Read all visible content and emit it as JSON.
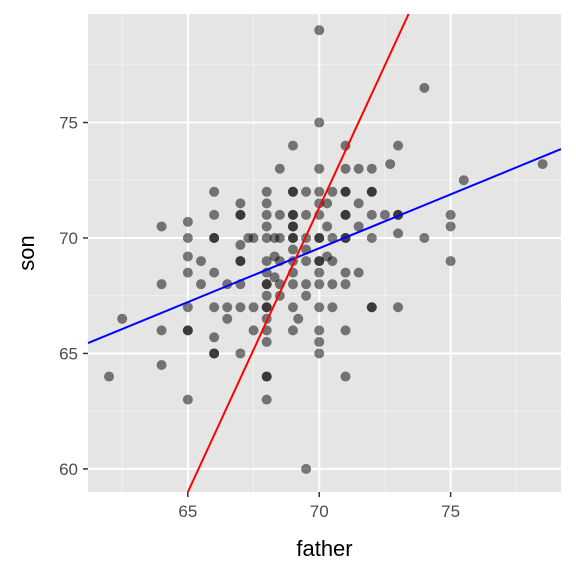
{
  "chart_data": {
    "type": "scatter",
    "xlabel": "father",
    "ylabel": "son",
    "xlim": [
      61.2,
      79.2
    ],
    "ylim": [
      59.0,
      79.7
    ],
    "x_ticks": [
      65,
      70,
      75
    ],
    "y_ticks": [
      60,
      65,
      70,
      75
    ],
    "x_minor": [
      62.5,
      67.5,
      72.5,
      77.5
    ],
    "y_minor": [
      62.5,
      67.5,
      72.5,
      77.5
    ],
    "grid": true,
    "legend": "none",
    "background_color": "#e5e5e5",
    "point_color": "#000000",
    "point_alpha": 0.5,
    "points": [
      [
        62,
        64
      ],
      [
        62.5,
        66.5
      ],
      [
        64,
        70.5
      ],
      [
        64,
        68
      ],
      [
        64,
        66
      ],
      [
        64,
        64.5
      ],
      [
        65,
        70.7
      ],
      [
        65,
        70
      ],
      [
        65,
        69.2
      ],
      [
        65,
        68.5
      ],
      [
        65,
        67
      ],
      [
        65,
        66
      ],
      [
        65,
        66
      ],
      [
        65,
        63
      ],
      [
        65.5,
        69
      ],
      [
        65.5,
        68
      ],
      [
        66,
        72
      ],
      [
        66,
        71
      ],
      [
        66,
        70
      ],
      [
        66,
        70
      ],
      [
        66,
        68.5
      ],
      [
        66,
        67
      ],
      [
        66,
        65.7
      ],
      [
        66,
        65
      ],
      [
        66,
        65
      ],
      [
        66.5,
        68
      ],
      [
        66.5,
        67
      ],
      [
        66.5,
        66.5
      ],
      [
        67,
        71.5
      ],
      [
        67,
        71
      ],
      [
        67,
        71
      ],
      [
        67,
        69.7
      ],
      [
        67,
        69
      ],
      [
        67,
        69
      ],
      [
        67,
        68
      ],
      [
        67,
        67
      ],
      [
        67,
        65
      ],
      [
        67.3,
        70
      ],
      [
        67.5,
        70
      ],
      [
        67.5,
        67
      ],
      [
        67.5,
        66
      ],
      [
        68,
        72
      ],
      [
        68,
        71.5
      ],
      [
        68,
        71
      ],
      [
        68,
        70.5
      ],
      [
        68,
        70
      ],
      [
        68,
        69
      ],
      [
        68,
        68.5
      ],
      [
        68,
        68
      ],
      [
        68,
        68
      ],
      [
        68,
        67.5
      ],
      [
        68,
        67
      ],
      [
        68,
        67
      ],
      [
        68,
        66.5
      ],
      [
        68,
        66
      ],
      [
        68,
        65.5
      ],
      [
        68,
        64
      ],
      [
        68,
        64
      ],
      [
        68,
        63
      ],
      [
        68.3,
        70
      ],
      [
        68.3,
        69.2
      ],
      [
        68.3,
        68.3
      ],
      [
        68.5,
        73
      ],
      [
        68.5,
        71
      ],
      [
        68.5,
        70
      ],
      [
        68.5,
        69
      ],
      [
        68.5,
        68
      ],
      [
        68.5,
        67.5
      ],
      [
        69,
        74
      ],
      [
        69,
        72
      ],
      [
        69,
        72
      ],
      [
        69,
        71
      ],
      [
        69,
        71
      ],
      [
        69,
        70.5
      ],
      [
        69,
        70.5
      ],
      [
        69,
        70
      ],
      [
        69,
        70
      ],
      [
        69,
        69.5
      ],
      [
        69,
        69
      ],
      [
        69,
        68.5
      ],
      [
        69,
        68
      ],
      [
        69,
        67
      ],
      [
        69,
        66
      ],
      [
        69.2,
        66.5
      ],
      [
        69.5,
        72
      ],
      [
        69.5,
        71
      ],
      [
        69.5,
        70
      ],
      [
        69.5,
        69.5
      ],
      [
        69.5,
        69
      ],
      [
        69.5,
        68
      ],
      [
        69.5,
        67.5
      ],
      [
        69.5,
        60
      ],
      [
        70,
        79
      ],
      [
        70,
        75
      ],
      [
        70,
        73
      ],
      [
        70,
        72
      ],
      [
        70,
        71.5
      ],
      [
        70,
        71
      ],
      [
        70,
        70
      ],
      [
        70,
        70
      ],
      [
        70,
        69
      ],
      [
        70,
        69
      ],
      [
        70,
        68.5
      ],
      [
        70,
        68
      ],
      [
        70,
        67
      ],
      [
        70,
        66
      ],
      [
        70,
        65.5
      ],
      [
        70,
        65
      ],
      [
        70.3,
        71.5
      ],
      [
        70.3,
        70.5
      ],
      [
        70.3,
        69.2
      ],
      [
        70.5,
        72
      ],
      [
        70.5,
        70
      ],
      [
        70.5,
        69
      ],
      [
        70.5,
        68
      ],
      [
        70.5,
        67
      ],
      [
        71,
        74
      ],
      [
        71,
        73
      ],
      [
        71,
        72
      ],
      [
        71,
        72
      ],
      [
        71,
        71
      ],
      [
        71,
        71
      ],
      [
        71,
        70
      ],
      [
        71,
        70
      ],
      [
        71,
        68.5
      ],
      [
        71,
        68
      ],
      [
        71,
        66
      ],
      [
        71,
        64
      ],
      [
        71.5,
        73
      ],
      [
        71.5,
        71.5
      ],
      [
        71.5,
        70.5
      ],
      [
        71.5,
        68.5
      ],
      [
        72,
        73
      ],
      [
        72,
        72
      ],
      [
        72,
        72
      ],
      [
        72,
        71
      ],
      [
        72,
        70
      ],
      [
        72,
        67
      ],
      [
        72,
        67
      ],
      [
        72.5,
        71
      ],
      [
        72.7,
        73.2
      ],
      [
        73,
        74
      ],
      [
        73,
        71
      ],
      [
        73,
        71
      ],
      [
        73,
        70.2
      ],
      [
        73,
        67
      ],
      [
        74,
        76.5
      ],
      [
        74,
        70
      ],
      [
        75,
        71
      ],
      [
        75,
        70.5
      ],
      [
        75,
        69
      ],
      [
        75.5,
        72.5
      ],
      [
        78.5,
        73.2
      ]
    ],
    "lines": [
      {
        "color": "#0000ff",
        "x": [
          61.2,
          79.2
        ],
        "y": [
          65.45,
          73.85
        ]
      },
      {
        "color": "#ff0000",
        "x": [
          65,
          73.4
        ],
        "y": [
          59.0,
          79.7
        ]
      }
    ]
  }
}
